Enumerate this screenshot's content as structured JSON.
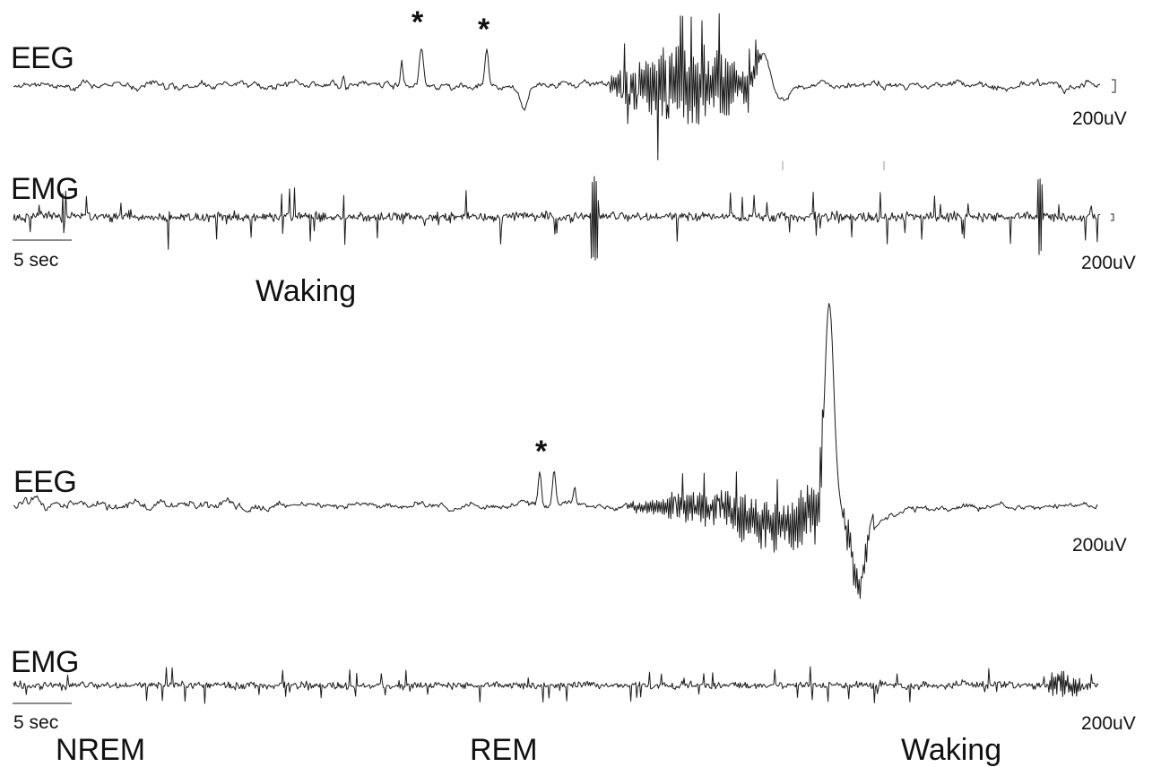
{
  "colors": {
    "trace": "#1a1a1a",
    "background": "#ffffff"
  },
  "chart_data": [
    {
      "type": "line",
      "panel": "top",
      "series": [
        {
          "name": "EEG",
          "scale": "200uV",
          "markers": [
            "*",
            "*"
          ]
        },
        {
          "name": "EMG",
          "scale": "200uV"
        }
      ],
      "time_scale": "5 sec",
      "stages": [
        "Waking"
      ]
    },
    {
      "type": "line",
      "panel": "bottom",
      "series": [
        {
          "name": "EEG",
          "scale": "200uV",
          "markers": [
            "*"
          ]
        },
        {
          "name": "EMG",
          "scale": "200uV"
        }
      ],
      "time_scale": "5 sec",
      "stages": [
        "NREM",
        "REM",
        "Waking"
      ]
    }
  ]
}
